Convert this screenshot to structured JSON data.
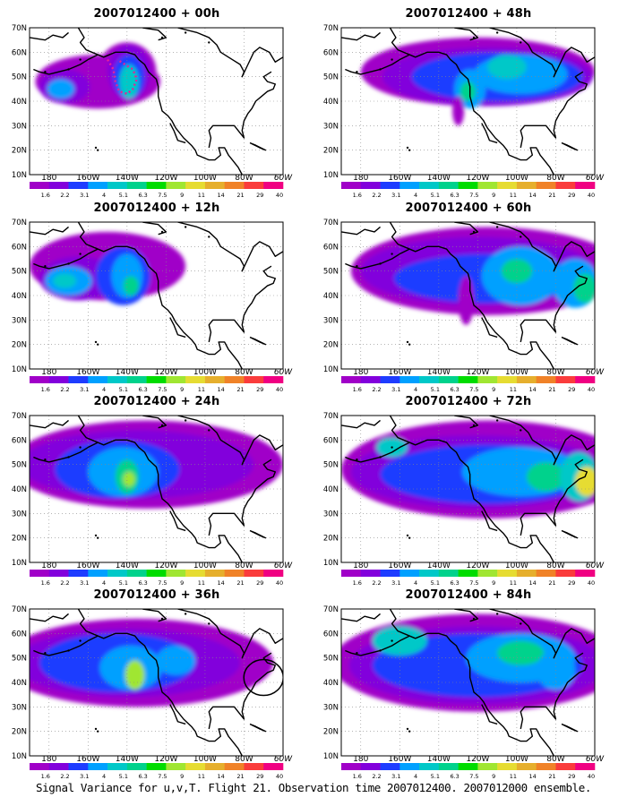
{
  "panels": [
    {
      "title": "2007012400 + 00h",
      "flight_track": true
    },
    {
      "title": "2007012400 + 48h"
    },
    {
      "title": "2007012400 + 12h"
    },
    {
      "title": "2007012400 + 60h"
    },
    {
      "title": "2007012400 + 24h"
    },
    {
      "title": "2007012400 + 72h"
    },
    {
      "title": "2007012400 + 36h",
      "circle": true
    },
    {
      "title": "2007012400 + 84h"
    }
  ],
  "lat_labels": [
    "70N",
    "60N",
    "50N",
    "40N",
    "30N",
    "20N",
    "10N"
  ],
  "lon_labels": [
    "180",
    "160W",
    "140W",
    "120W",
    "100W",
    "80W",
    "60W"
  ],
  "colorbar": {
    "labels": [
      "1.6",
      "2.2",
      "3.1",
      "4",
      "5.1",
      "6.3",
      "7.5",
      "9",
      "11",
      "14",
      "21",
      "29",
      "40"
    ],
    "colors": [
      "#a000c8",
      "#8200dc",
      "#1e3cff",
      "#00a0ff",
      "#00c8c8",
      "#00d28c",
      "#00dc00",
      "#a0e632",
      "#e6dc32",
      "#e6af2d",
      "#f08228",
      "#fa3c3c",
      "#f00082"
    ]
  },
  "caption": "Signal Variance for u,v,T. Flight 21. Observation time 2007012400. 2007012000 ensemble."
}
